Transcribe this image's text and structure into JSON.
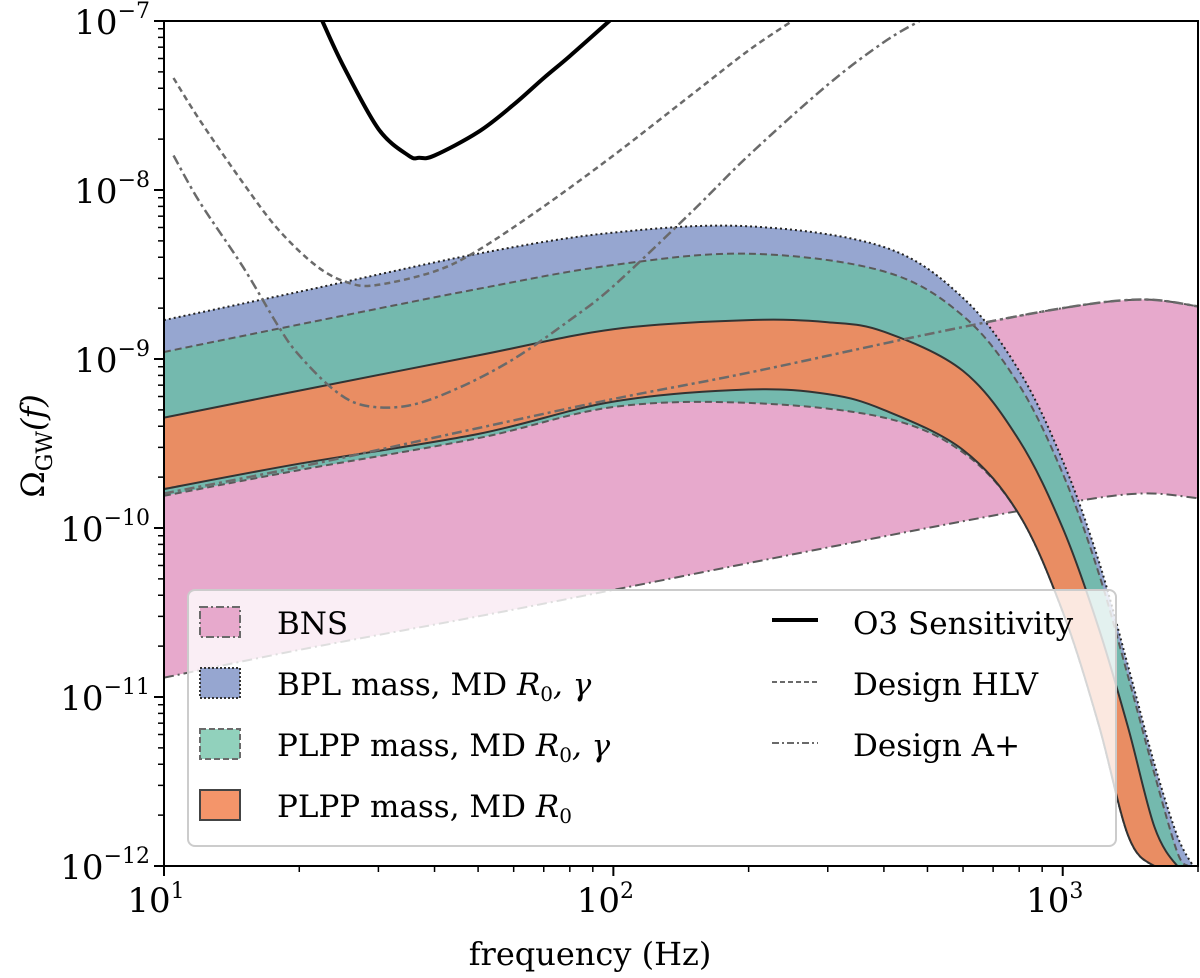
{
  "chart_data": {
    "type": "area",
    "title": "",
    "xlabel": "frequency (Hz)",
    "ylabel": "Ω_GW(f)",
    "xscale": "log",
    "yscale": "log",
    "xlim": [
      10,
      2000
    ],
    "ylim": [
      1e-12,
      1e-07
    ],
    "x_ticks": [
      {
        "value": 10,
        "base": "10",
        "exp": "1"
      },
      {
        "value": 100,
        "base": "10",
        "exp": "2"
      },
      {
        "value": 1000,
        "base": "10",
        "exp": "3"
      }
    ],
    "y_ticks": [
      {
        "value": 1e-07,
        "base": "10",
        "exp": "−7"
      },
      {
        "value": 1e-08,
        "base": "10",
        "exp": "−8"
      },
      {
        "value": 1e-09,
        "base": "10",
        "exp": "−9"
      },
      {
        "value": 1e-10,
        "base": "10",
        "exp": "−10"
      },
      {
        "value": 1e-11,
        "base": "10",
        "exp": "−11"
      },
      {
        "value": 1e-12,
        "base": "10",
        "exp": "−12"
      }
    ],
    "grid": false,
    "bands": [
      {
        "name": "BNS",
        "color": "#e7a9cc",
        "edge": "#5a5a5a",
        "linestyle": "dashdot",
        "x": [
          10,
          20,
          50,
          100,
          200,
          500,
          1000,
          1500,
          2000
        ],
        "upper": [
          1.6e-10,
          2.3e-10,
          3.5e-10,
          5.5e-10,
          8e-10,
          1.4e-09,
          2e-09,
          2.25e-09,
          2.05e-09
        ],
        "lower": [
          1.3e-11,
          1.9e-11,
          3e-11,
          4.3e-11,
          6.2e-11,
          1e-10,
          1.4e-10,
          1.6e-10,
          1.5e-10
        ]
      },
      {
        "name": "BPL mass, MD R0, γ",
        "legend_label_prefix": "BPL mass, MD ",
        "color": "#96a6d0",
        "edge": "#222222",
        "linestyle": "dotted",
        "x": [
          10,
          20,
          50,
          100,
          200,
          400,
          600,
          800,
          1000,
          1200,
          1400,
          1600,
          1800,
          1950
        ],
        "upper": [
          1.7e-09,
          2.5e-09,
          4.2e-09,
          5.6e-09,
          6.1e-09,
          4.6e-09,
          2.3e-09,
          8.5e-10,
          2.5e-10,
          6.5e-11,
          1.5e-11,
          4e-12,
          1.5e-12,
          1e-12
        ],
        "lower": [
          1.7e-10,
          2.4e-10,
          3.6e-10,
          5.6e-10,
          6.6e-10,
          5e-10,
          2.9e-10,
          1.2e-10,
          3.2e-11,
          7e-12,
          1.5e-12,
          1e-12,
          1e-12,
          1e-12
        ]
      },
      {
        "name": "PLPP mass, MD R0, γ",
        "legend_label_prefix": "PLPP mass, MD ",
        "color": "#74b9ae",
        "edge": "#5a5a5a",
        "linestyle": "dashed",
        "x": [
          10,
          20,
          50,
          100,
          200,
          400,
          600,
          800,
          1000,
          1200,
          1400,
          1600,
          1800,
          1900
        ],
        "upper": [
          1.1e-09,
          1.6e-09,
          2.6e-09,
          3.6e-09,
          4.2e-09,
          3.3e-09,
          1.8e-09,
          7e-10,
          2.1e-10,
          5.5e-11,
          1.3e-11,
          3.5e-12,
          1.2e-12,
          1e-12
        ],
        "lower": [
          1.55e-10,
          2.2e-10,
          3.4e-10,
          5.2e-10,
          5.5e-10,
          4.5e-10,
          2.8e-10,
          1.2e-10,
          3.2e-11,
          7e-12,
          1.5e-12,
          1e-12,
          1e-12,
          1e-12
        ]
      },
      {
        "name": "PLPP mass, MD R0",
        "legend_label_prefix": "PLPP mass, MD ",
        "color": "#e98d63",
        "edge": "#333333",
        "linestyle": "solid",
        "x": [
          10,
          20,
          50,
          100,
          200,
          300,
          400,
          600,
          800,
          1000,
          1200,
          1400,
          1600,
          1800,
          1900
        ],
        "upper": [
          4.5e-10,
          6.5e-10,
          1.05e-09,
          1.5e-09,
          1.7e-09,
          1.65e-09,
          1.45e-09,
          8.5e-10,
          3.3e-10,
          1e-10,
          2.6e-11,
          6.5e-12,
          1.7e-12,
          1e-12,
          1e-12
        ],
        "lower": [
          1.7e-10,
          2.4e-10,
          3.6e-10,
          5.6e-10,
          6.6e-10,
          6.2e-10,
          5e-10,
          2.9e-10,
          1.2e-10,
          3.2e-11,
          7e-12,
          1.5e-12,
          1e-12,
          1e-12,
          1e-12
        ]
      }
    ],
    "lines": [
      {
        "name": "O3 Sensitivity",
        "color": "#000000",
        "linestyle": "solid",
        "x": [
          22.5,
          25,
          30,
          35,
          37,
          40,
          50,
          60,
          70,
          80,
          100
        ],
        "y": [
          1e-07,
          5.5e-08,
          2.3e-08,
          1.6e-08,
          1.55e-08,
          1.6e-08,
          2.2e-08,
          3.2e-08,
          4.6e-08,
          6.2e-08,
          1.05e-07
        ]
      },
      {
        "name": "Design HLV",
        "color": "#6a6a6a",
        "linestyle": "dashed",
        "x": [
          10.5,
          12,
          15,
          18,
          22,
          26,
          30,
          40,
          50,
          70,
          100,
          150,
          200,
          250
        ],
        "y": [
          4.6e-08,
          2.6e-08,
          1.1e-08,
          5.8e-09,
          3.5e-09,
          2.8e-09,
          2.75e-09,
          3.3e-09,
          4.4e-09,
          8e-09,
          1.6e-08,
          3.7e-08,
          6.7e-08,
          1e-07
        ]
      },
      {
        "name": "Design A+",
        "color": "#6a6a6a",
        "linestyle": "dashdot",
        "x": [
          10.5,
          12,
          15,
          18,
          20,
          24,
          28,
          35,
          45,
          60,
          80,
          100,
          150,
          200,
          300,
          400,
          480
        ],
        "y": [
          1.6e-08,
          8.5e-09,
          3.5e-09,
          1.55e-09,
          1.05e-09,
          6.5e-10,
          5.3e-10,
          5.3e-10,
          6.7e-10,
          1e-09,
          1.7e-09,
          2.7e-09,
          7.5e-09,
          1.6e-08,
          4.2e-08,
          7.5e-08,
          1e-07
        ]
      },
      {
        "name": "BNS (A+ overlay upper)",
        "hidden_in_legend": true,
        "color": "#6a6a6a",
        "linestyle": "dashdot",
        "x": [
          10,
          20,
          50,
          100,
          200,
          500,
          1000,
          1500,
          2000
        ],
        "y": [
          1.6e-10,
          2.3e-10,
          3.9e-10,
          5.8e-10,
          8.3e-10,
          1.4e-09,
          2e-09,
          2.25e-09,
          2.05e-09
        ]
      }
    ],
    "legend": {
      "location": "lower-left",
      "columns": 2,
      "entries": [
        {
          "label": "BNS",
          "kind": "patch",
          "color": "#e7a9cc",
          "edge_style": "dashdot"
        },
        {
          "label_prefix": "BPL mass, MD ",
          "math": "R0, γ",
          "kind": "patch",
          "color": "#96a6d0",
          "edge_style": "dotted"
        },
        {
          "label_prefix": "PLPP mass, MD ",
          "math": "R0, γ",
          "kind": "patch",
          "color": "#91d1bc",
          "edge_style": "dashed"
        },
        {
          "label_prefix": "PLPP mass, MD ",
          "math": "R0",
          "kind": "patch",
          "color": "#f4956a",
          "edge_style": "solid"
        },
        {
          "label": "O3 Sensitivity",
          "kind": "line",
          "color": "#000000",
          "line_style": "solid"
        },
        {
          "label": "Design HLV",
          "kind": "line",
          "color": "#6a6a6a",
          "line_style": "dashed"
        },
        {
          "label": "Design A+",
          "kind": "line",
          "color": "#6a6a6a",
          "line_style": "dashdot"
        }
      ]
    }
  },
  "labels": {
    "xlabel": "frequency (Hz)",
    "ylabel_main": "Ω",
    "ylabel_sub": "GW",
    "ylabel_arg": "(f)",
    "legend_bns": "BNS",
    "legend_bpl": "BPL mass, MD ",
    "legend_plpp_g": "PLPP mass, MD ",
    "legend_plpp": "PLPP mass, MD ",
    "legend_r": "R",
    "legend_r_sub": "0",
    "legend_gamma": ", γ",
    "legend_o3": "O3 Sensitivity",
    "legend_hlv": "Design HLV",
    "legend_aplus": "Design A+"
  }
}
